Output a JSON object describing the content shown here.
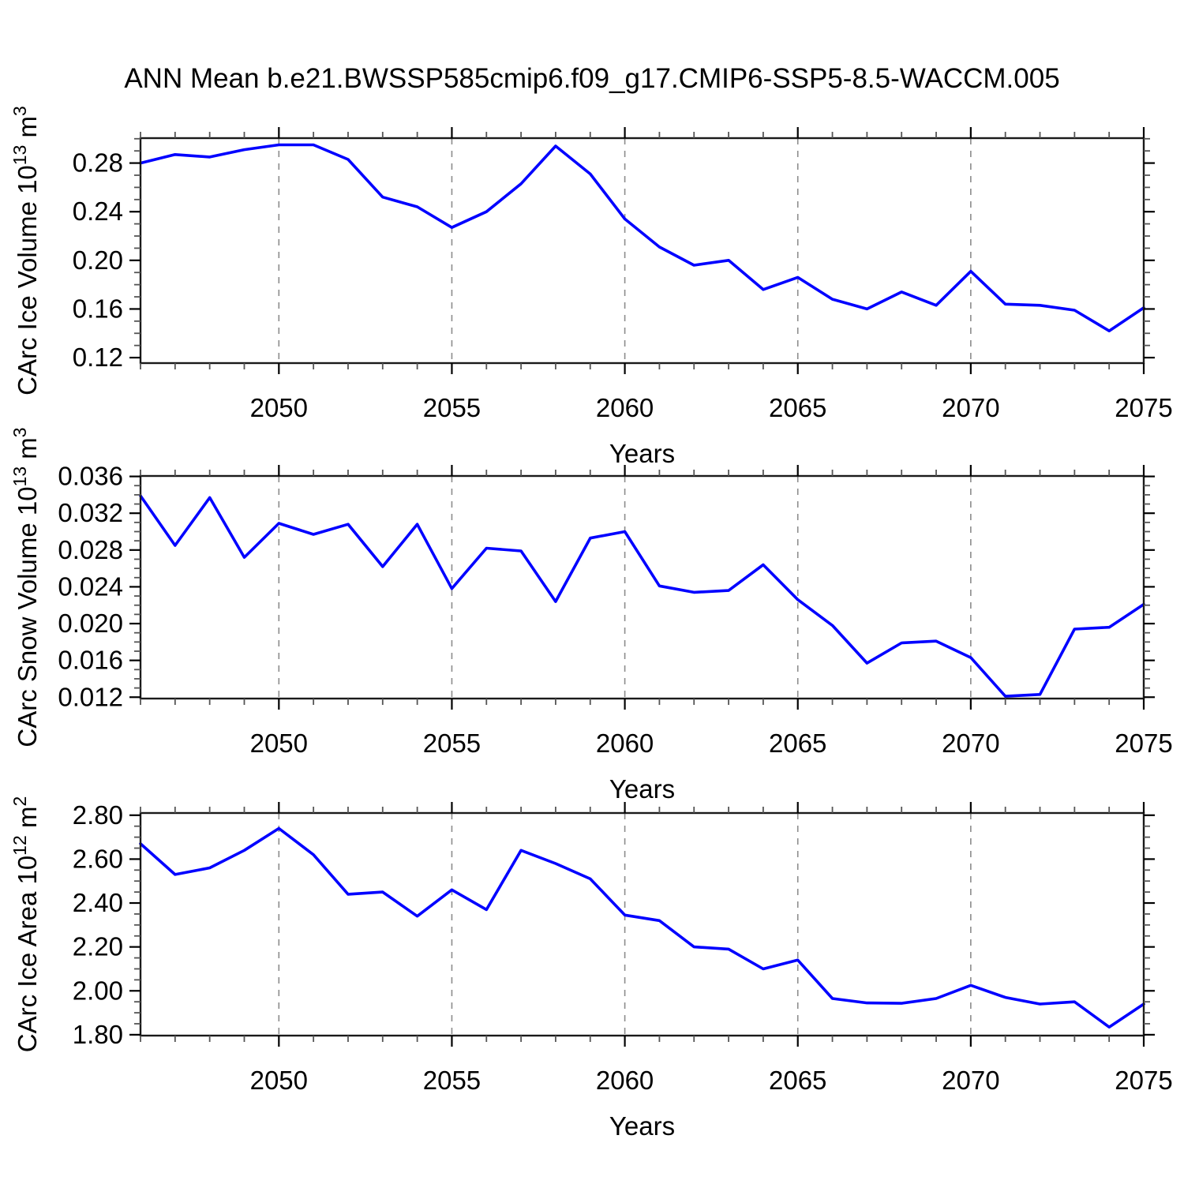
{
  "title": "ANN Mean b.e21.BWSSP585cmip6.f09_g17.CMIP6-SSP5-8.5-WACCM.005",
  "colors": {
    "line": "#0000ff",
    "frame": "#1a1a1a",
    "grid": "#8c8c8c",
    "minor_tick": "#555555",
    "major_tick": "#000000",
    "text": "#000000",
    "background": "#ffffff"
  },
  "chart_data": [
    {
      "type": "line",
      "ylabel_plain": "CArc Ice Volume 10^13 m^3",
      "ylabel_segments": [
        {
          "t": "CArc Ice Volume 10",
          "sup": false
        },
        {
          "t": "13",
          "sup": true
        },
        {
          "t": " m",
          "sup": false
        },
        {
          "t": "3",
          "sup": true
        }
      ],
      "xlabel": "Years",
      "x": [
        2046,
        2047,
        2048,
        2049,
        2050,
        2051,
        2052,
        2053,
        2054,
        2055,
        2056,
        2057,
        2058,
        2059,
        2060,
        2061,
        2062,
        2063,
        2064,
        2065,
        2066,
        2067,
        2068,
        2069,
        2070,
        2071,
        2072,
        2073,
        2074,
        2075
      ],
      "values": [
        0.28,
        0.287,
        0.285,
        0.291,
        0.295,
        0.295,
        0.283,
        0.252,
        0.244,
        0.227,
        0.24,
        0.263,
        0.294,
        0.271,
        0.234,
        0.211,
        0.196,
        0.2,
        0.176,
        0.186,
        0.168,
        0.16,
        0.174,
        0.163,
        0.191,
        0.164,
        0.163,
        0.159,
        0.142,
        0.161
      ],
      "xlim": [
        2046,
        2075
      ],
      "ylim": [
        0.1155,
        0.3005
      ],
      "xticks": [
        2050,
        2055,
        2060,
        2065,
        2070,
        2075
      ],
      "xtick_labels": [
        "2050",
        "2055",
        "2060",
        "2065",
        "2070",
        "2075"
      ],
      "xminor_step": 1,
      "grid_x": [
        2050,
        2055,
        2060,
        2065,
        2070
      ],
      "yticks": [
        0.12,
        0.16,
        0.2,
        0.24,
        0.28
      ],
      "ytick_labels": [
        "0.12",
        "0.16",
        "0.20",
        "0.24",
        "0.28"
      ],
      "yminor_step": 0.01
    },
    {
      "type": "line",
      "ylabel_plain": "CArc Snow Volume 10^13 m^3",
      "ylabel_segments": [
        {
          "t": "CArc Snow Volume 10",
          "sup": false
        },
        {
          "t": "13",
          "sup": true
        },
        {
          "t": " m",
          "sup": false
        },
        {
          "t": "3",
          "sup": true
        }
      ],
      "xlabel": "Years",
      "x": [
        2046,
        2047,
        2048,
        2049,
        2050,
        2051,
        2052,
        2053,
        2054,
        2055,
        2056,
        2057,
        2058,
        2059,
        2060,
        2061,
        2062,
        2063,
        2064,
        2065,
        2066,
        2067,
        2068,
        2069,
        2070,
        2071,
        2072,
        2073,
        2074,
        2075
      ],
      "values": [
        0.0339,
        0.0285,
        0.0337,
        0.0272,
        0.0309,
        0.0297,
        0.0308,
        0.0262,
        0.0308,
        0.0238,
        0.0282,
        0.0279,
        0.0224,
        0.0293,
        0.03,
        0.0241,
        0.0234,
        0.0236,
        0.0264,
        0.0226,
        0.0198,
        0.0157,
        0.0179,
        0.0181,
        0.0163,
        0.0121,
        0.0123,
        0.0194,
        0.0196,
        0.0221
      ],
      "xlim": [
        2046,
        2075
      ],
      "ylim": [
        0.01185,
        0.03605
      ],
      "xticks": [
        2050,
        2055,
        2060,
        2065,
        2070,
        2075
      ],
      "xtick_labels": [
        "2050",
        "2055",
        "2060",
        "2065",
        "2070",
        "2075"
      ],
      "xminor_step": 1,
      "grid_x": [
        2050,
        2055,
        2060,
        2065,
        2070
      ],
      "yticks": [
        0.012,
        0.016,
        0.02,
        0.024,
        0.028,
        0.032,
        0.036
      ],
      "ytick_labels": [
        "0.012",
        "0.016",
        "0.020",
        "0.024",
        "0.028",
        "0.032",
        "0.036"
      ],
      "yminor_step": 0.001
    },
    {
      "type": "line",
      "ylabel_plain": "CArc Ice Area 10^12 m^2",
      "ylabel_segments": [
        {
          "t": "CArc Ice Area 10",
          "sup": false
        },
        {
          "t": "12",
          "sup": true
        },
        {
          "t": " m",
          "sup": false
        },
        {
          "t": "2",
          "sup": true
        }
      ],
      "xlabel": "Years",
      "x": [
        2046,
        2047,
        2048,
        2049,
        2050,
        2051,
        2052,
        2053,
        2054,
        2055,
        2056,
        2057,
        2058,
        2059,
        2060,
        2061,
        2062,
        2063,
        2064,
        2065,
        2066,
        2067,
        2068,
        2069,
        2070,
        2071,
        2072,
        2073,
        2074,
        2075
      ],
      "values": [
        2.67,
        2.53,
        2.56,
        2.64,
        2.74,
        2.62,
        2.44,
        2.45,
        2.34,
        2.46,
        2.37,
        2.64,
        2.58,
        2.51,
        2.345,
        2.32,
        2.2,
        2.19,
        2.1,
        2.14,
        1.965,
        1.945,
        1.943,
        1.965,
        2.025,
        1.97,
        1.94,
        1.95,
        1.835,
        1.94
      ],
      "xlim": [
        2046,
        2075
      ],
      "ylim": [
        1.796,
        2.81
      ],
      "xticks": [
        2050,
        2055,
        2060,
        2065,
        2070,
        2075
      ],
      "xtick_labels": [
        "2050",
        "2055",
        "2060",
        "2065",
        "2070",
        "2075"
      ],
      "xminor_step": 1,
      "grid_x": [
        2050,
        2055,
        2060,
        2065,
        2070
      ],
      "yticks": [
        1.8,
        2.0,
        2.2,
        2.4,
        2.6,
        2.8
      ],
      "ytick_labels": [
        "1.80",
        "2.00",
        "2.20",
        "2.40",
        "2.60",
        "2.80"
      ],
      "yminor_step": 0.05
    }
  ]
}
